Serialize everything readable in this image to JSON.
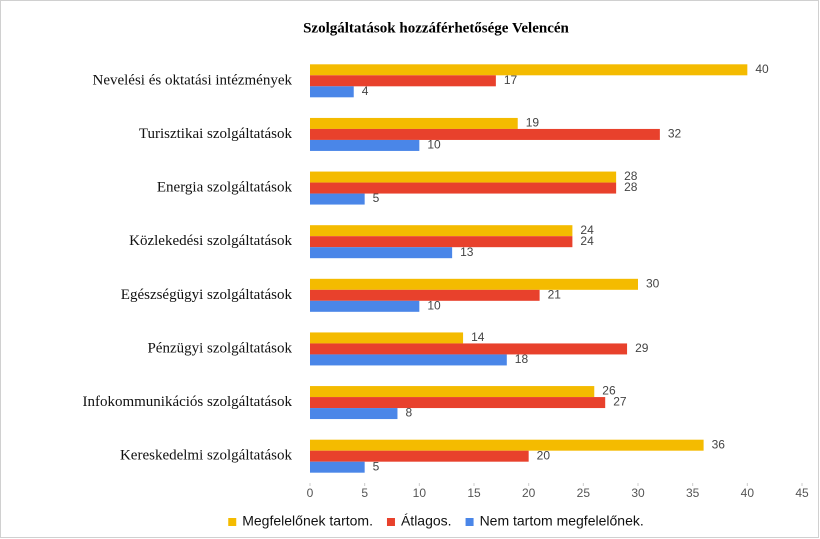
{
  "chart_data": {
    "type": "hbar",
    "title": "Szolgáltatások hozzáférhetősége Velencén",
    "categories": [
      "Nevelési és oktatási intézmények",
      "Turisztikai szolgáltatások",
      "Energia szolgáltatások",
      "Közlekedési szolgáltatások",
      "Egészségügyi szolgáltatások",
      "Pénzügyi szolgáltatások",
      "Infokommunikációs szolgáltatások",
      "Kereskedelmi szolgáltatások"
    ],
    "series": [
      {
        "name": "Megfelelőnek tartom.",
        "color": "#f4bb00",
        "values": [
          40,
          19,
          28,
          24,
          30,
          14,
          26,
          36
        ]
      },
      {
        "name": "Átlagos.",
        "color": "#e8412c",
        "values": [
          17,
          32,
          28,
          24,
          21,
          29,
          27,
          20
        ]
      },
      {
        "name": "Nem tartom megfelelőnek.",
        "color": "#4a86e8",
        "values": [
          4,
          10,
          5,
          13,
          10,
          18,
          8,
          5
        ]
      }
    ],
    "xlim": [
      0,
      45
    ],
    "xticks": [
      0,
      5,
      10,
      15,
      20,
      25,
      30,
      35,
      40,
      45
    ],
    "legend": "bottom"
  }
}
